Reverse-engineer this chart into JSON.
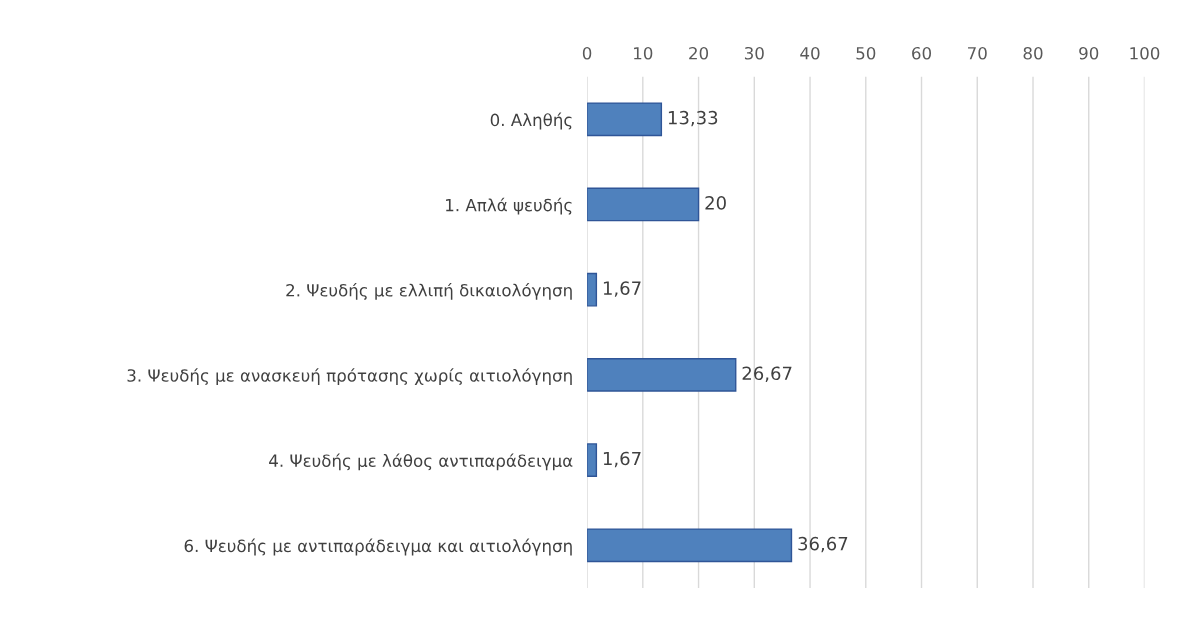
{
  "chart_data": {
    "type": "bar",
    "orientation": "horizontal",
    "categories": [
      "0. Αληθής",
      "1. Απλά ψευδής",
      "2. Ψευδής με ελλιπή δικαιολόγηση",
      "3. Ψευδής με ανασκευή πρότασης χωρίς αιτιολόγηση",
      "4. Ψευδής με λάθος αντιπαράδειγμα",
      "6. Ψευδής με αντιπαράδειγμα και αιτιολόγηση"
    ],
    "values": [
      13.33,
      20,
      1.67,
      26.67,
      1.67,
      36.67
    ],
    "value_labels": [
      "13,33",
      "20",
      "1,67",
      "26,67",
      "1,67",
      "36,67"
    ],
    "color": "#4f81bd",
    "xlim": [
      0,
      100
    ],
    "xticks": [
      0,
      10,
      20,
      30,
      40,
      50,
      60,
      70,
      80,
      90,
      100
    ],
    "grid": "x",
    "legend": false
  }
}
